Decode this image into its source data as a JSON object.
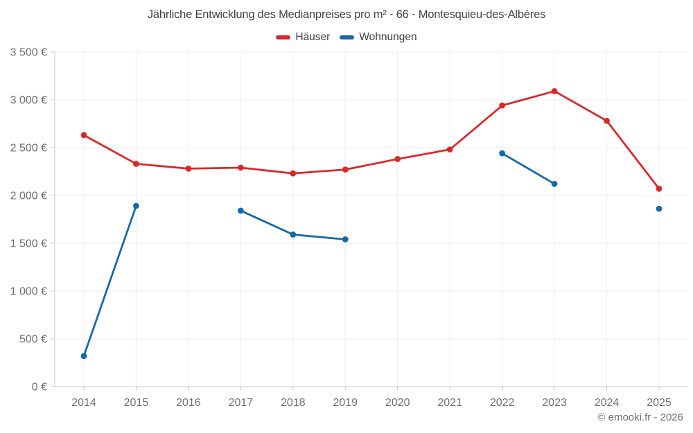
{
  "header": {
    "title": "Jährliche Entwicklung des Medianpreises pro m² - 66 - Montesquieu-des-Albères"
  },
  "legend": {
    "items": [
      {
        "label": "Häuser",
        "color": "#d9292b"
      },
      {
        "label": "Wohnungen",
        "color": "#1769a5"
      }
    ]
  },
  "footer": {
    "text": "© emooki.fr - 2026"
  },
  "chart_data": {
    "type": "line",
    "title": "Jährliche Entwicklung des Medianpreises pro m² - 66 - Montesquieu-des-Albères",
    "categories": [
      "2014",
      "2015",
      "2016",
      "2017",
      "2018",
      "2019",
      "2020",
      "2021",
      "2022",
      "2023",
      "2024",
      "2025"
    ],
    "series": [
      {
        "name": "Häuser",
        "color": "#d9292b",
        "values": [
          2630,
          2330,
          2280,
          2290,
          2230,
          2270,
          2380,
          2480,
          2940,
          3090,
          2780,
          2070
        ]
      },
      {
        "name": "Wohnungen",
        "color": "#1769a5",
        "values": [
          320,
          1890,
          null,
          1840,
          1590,
          1540,
          null,
          null,
          2440,
          2120,
          null,
          1860
        ]
      }
    ],
    "xlabel": "",
    "ylabel": "",
    "ylim": [
      0,
      3500
    ],
    "ytick_step": 500,
    "yticks": [
      "0 €",
      "500 €",
      "1 000 €",
      "1 500 €",
      "2 000 €",
      "2 500 €",
      "3 000 €",
      "3 500 €"
    ],
    "grid": true,
    "legend_position": "top",
    "grid_color": "#ededed",
    "axis_color": "#c9c9c9",
    "tick_label_color": "#6e6e6e"
  }
}
